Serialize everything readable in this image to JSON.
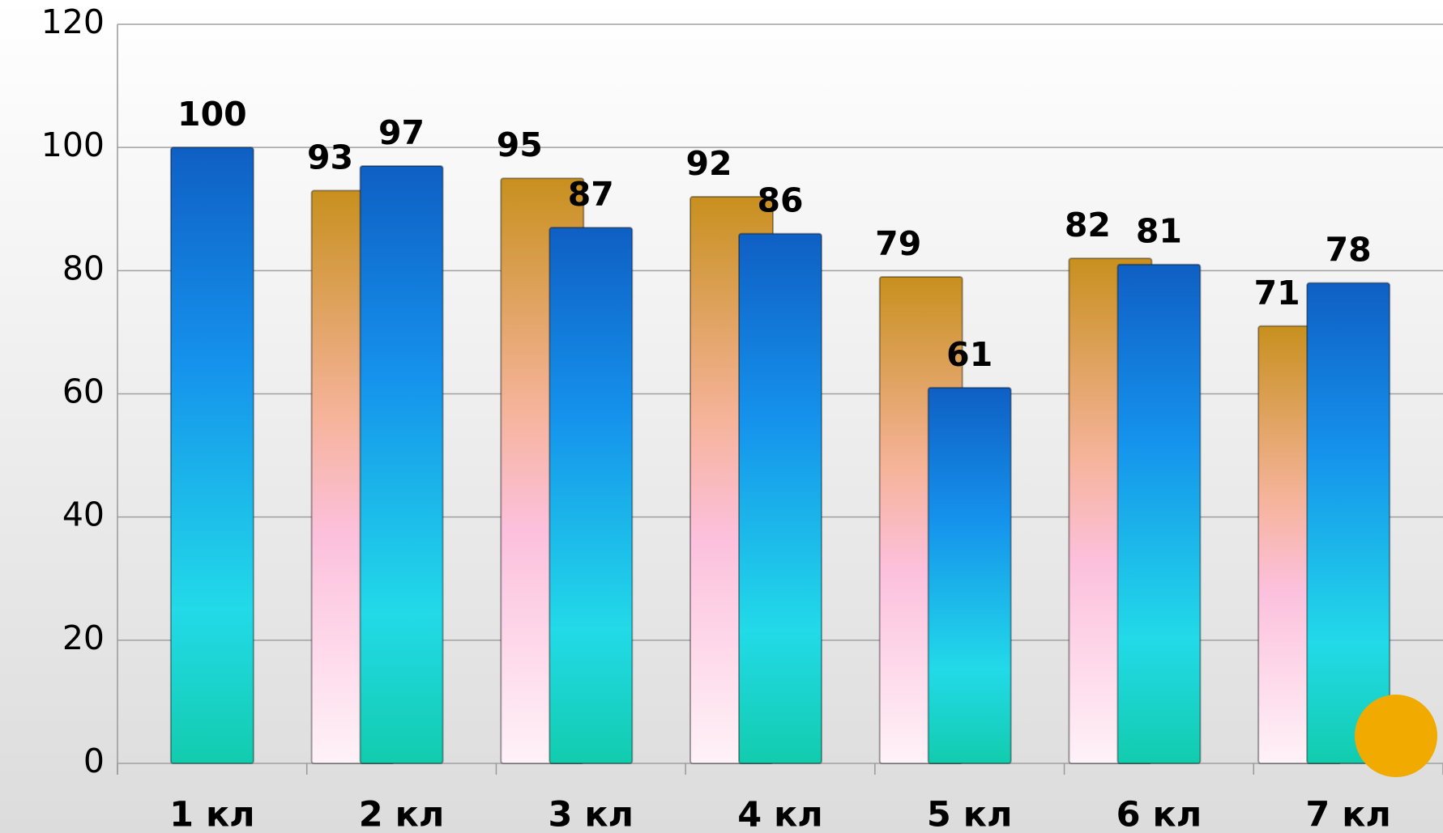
{
  "chart_data": {
    "type": "bar",
    "categories": [
      "1 кл",
      "2 кл",
      "3 кл",
      "4 кл",
      "5 кл",
      "6 кл",
      "7 кл"
    ],
    "series": [
      {
        "color": "#c8901e",
        "values": [
          null,
          93,
          95,
          92,
          79,
          82,
          71
        ]
      },
      {
        "color": "#0f5fc4",
        "values": [
          100,
          97,
          87,
          86,
          61,
          81,
          78
        ]
      }
    ],
    "ylim": [
      0,
      120
    ],
    "yticks": [
      0,
      20,
      40,
      60,
      80,
      100,
      120
    ],
    "grid": true
  }
}
